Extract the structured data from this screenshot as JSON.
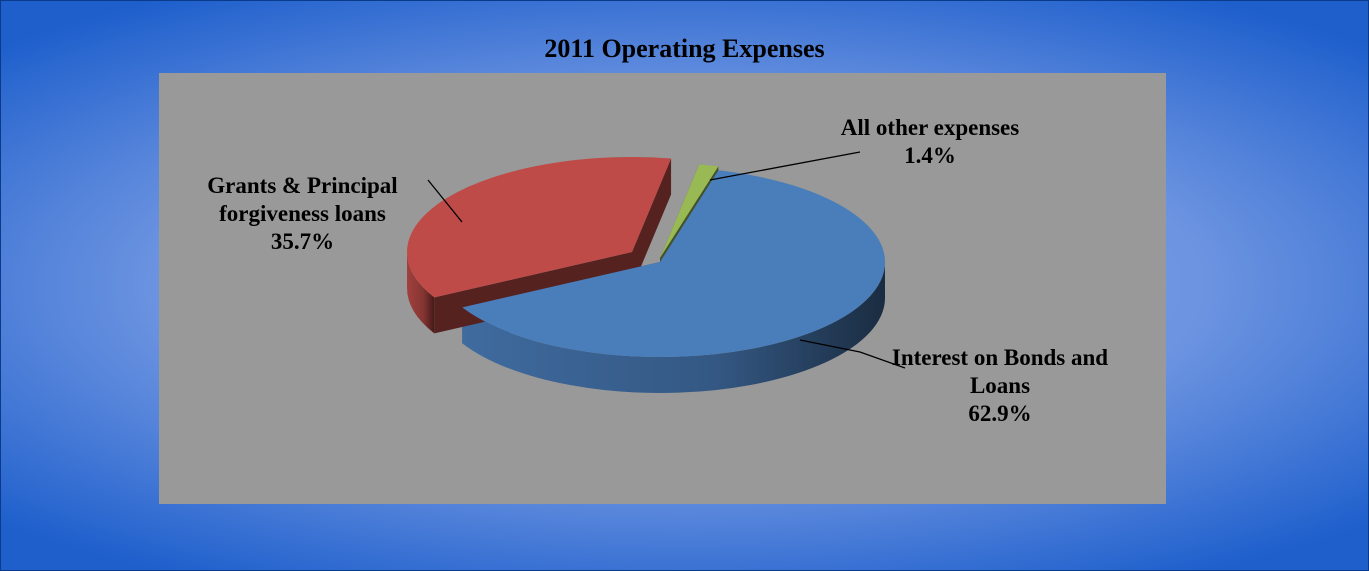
{
  "chart_data": {
    "type": "pie",
    "title": "2011 Operating Expenses",
    "categories": [
      "All other expenses",
      "Interest on Bonds and Loans",
      "Grants & Principal forgiveness loans"
    ],
    "values": [
      1.4,
      62.9,
      35.7
    ],
    "value_labels": [
      "1.4%",
      "62.9%",
      "35.7%"
    ],
    "colors": [
      "#98b954",
      "#4a7ebb",
      "#be4b48"
    ]
  }
}
